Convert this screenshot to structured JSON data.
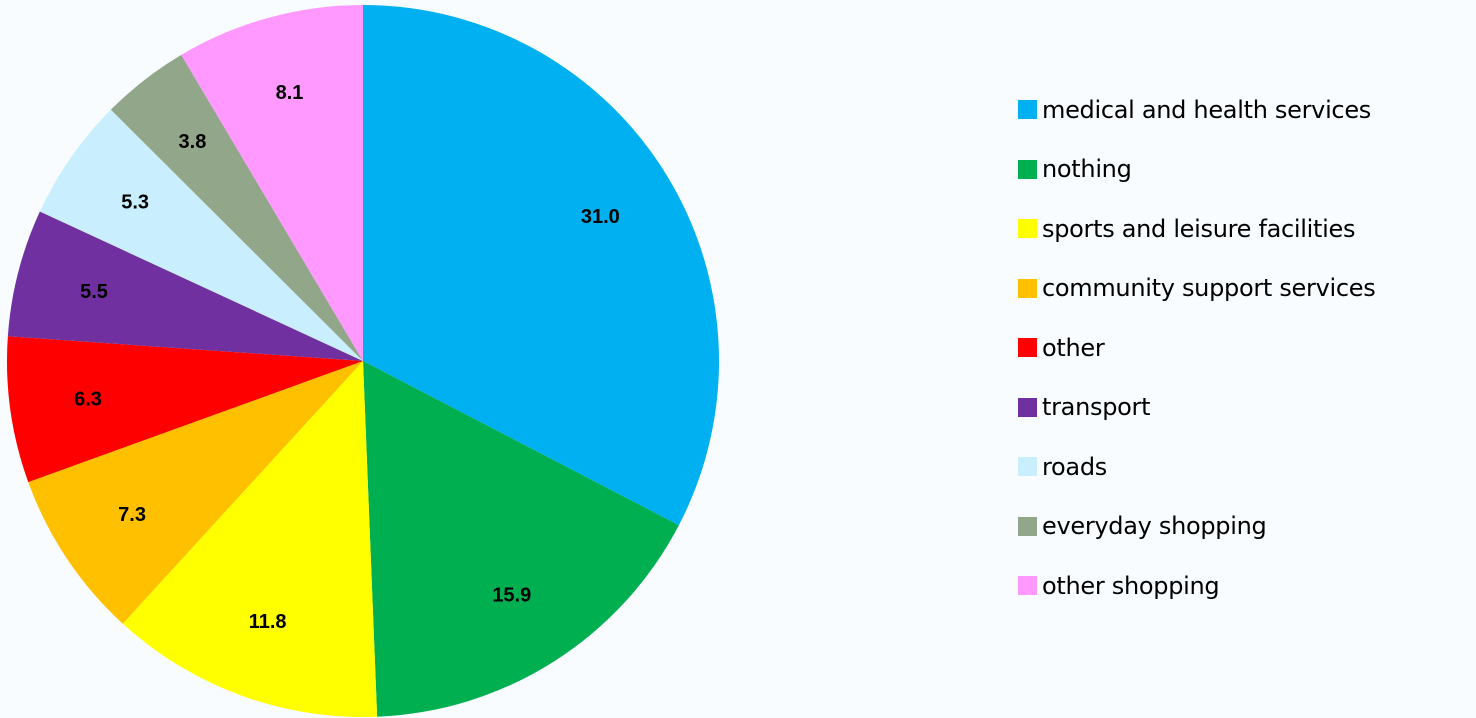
{
  "chart_data": {
    "type": "pie",
    "title": "",
    "start_angle_deg": 0,
    "direction": "clockwise",
    "legend_position": "right",
    "slices": [
      {
        "label": "medical and health services",
        "value": 31.0,
        "value_label": "31.0",
        "color": "#00b0f0"
      },
      {
        "label": "nothing",
        "value": 15.9,
        "value_label": "15.9",
        "color": "#00b050"
      },
      {
        "label": "sports and leisure facilities",
        "value": 11.8,
        "value_label": "11.8",
        "color": "#ffff00"
      },
      {
        "label": "community support services",
        "value": 7.3,
        "value_label": "7.3",
        "color": "#ffc000"
      },
      {
        "label": "other",
        "value": 6.3,
        "value_label": "6.3",
        "color": "#ff0000"
      },
      {
        "label": "transport",
        "value": 5.5,
        "value_label": "5.5",
        "color": "#7030a0"
      },
      {
        "label": "roads",
        "value": 5.3,
        "value_label": "5.3",
        "color": "#c9efff"
      },
      {
        "label": "everyday shopping",
        "value": 3.8,
        "value_label": "3.8",
        "color": "#92a68a"
      },
      {
        "label": "other shopping",
        "value": 8.1,
        "value_label": "8.1",
        "color": "#ff99ff"
      }
    ]
  }
}
